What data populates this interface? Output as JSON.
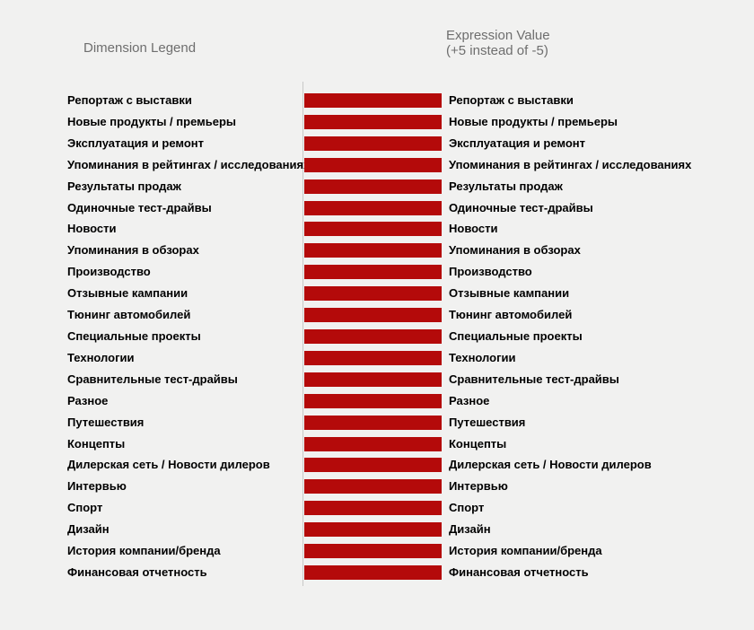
{
  "chart": {
    "header": {
      "left_title": "Dimension Legend",
      "right_title_line1": "Expression Value",
      "right_title_line2": "(+5 instead of -5)"
    },
    "colors": {
      "background": "#f1f1f0",
      "bar": "#b40a0a",
      "axis_line": "#c8c8c8",
      "title_text": "#6e6e6e",
      "label_text": "#000000"
    }
  },
  "chart_data": {
    "type": "bar",
    "orientation": "horizontal",
    "legend_title": "Dimension Legend",
    "title": "Expression Value (+5 instead of -5)",
    "categories": [
      "Репортаж с выставки",
      "Новые продукты / премьеры",
      "Эксплуатация и ремонт",
      "Упоминания в рейтингах / исследованиях",
      "Результаты продаж",
      "Одиночные тест-драйвы",
      "Новости",
      "Упоминания в обзорах",
      "Производство",
      "Отзывные кампании",
      "Тюнинг автомобилей",
      "Специальные проекты",
      "Технологии",
      "Сравнительные тест-драйвы",
      "Разное",
      "Путешествия",
      "Концепты",
      "Дилерская сеть / Новости дилеров",
      "Интервью",
      "Спорт",
      "Дизайн",
      "История компании/бренда",
      "Финансовая отчетность"
    ],
    "values": [
      5,
      5,
      5,
      5,
      5,
      5,
      5,
      5,
      5,
      5,
      5,
      5,
      5,
      5,
      5,
      5,
      5,
      5,
      5,
      5,
      5,
      5,
      5
    ],
    "value_note": "All bars equal length; expression plots +5 instead of -5; no numeric data labels shown",
    "xlim": [
      0,
      5
    ],
    "grid": false,
    "bar_color": "#b40a0a",
    "right_labels_repeat_categories": true
  }
}
